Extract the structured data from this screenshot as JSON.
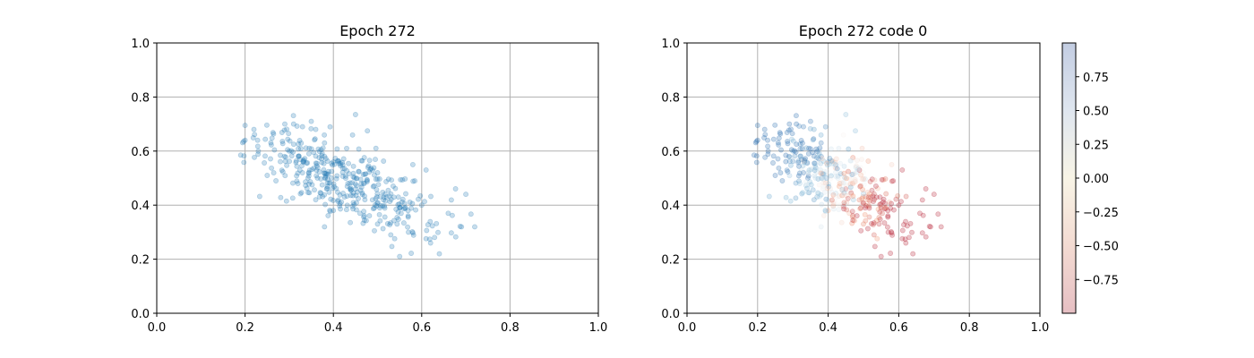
{
  "chart_data": [
    {
      "type": "scatter",
      "title": "Epoch 272",
      "xlim": [
        0.0,
        1.0
      ],
      "ylim": [
        0.0,
        1.0
      ],
      "xticks": [
        "0.0",
        "0.2",
        "0.4",
        "0.6",
        "0.8",
        "1.0"
      ],
      "yticks": [
        "0.0",
        "0.2",
        "0.4",
        "0.6",
        "0.8",
        "1.0"
      ],
      "grid": true,
      "point_color": "#1f77b4",
      "point_alpha": 0.25,
      "n_points": 420,
      "cluster": {
        "x_range": [
          0.19,
          0.72
        ],
        "y_range": [
          0.21,
          0.74
        ],
        "center": [
          0.42,
          0.48
        ],
        "trend": "negative"
      },
      "sample_points": [
        [
          0.19,
          0.585
        ],
        [
          0.2,
          0.64
        ],
        [
          0.2,
          0.695
        ],
        [
          0.22,
          0.68
        ],
        [
          0.23,
          0.6
        ],
        [
          0.25,
          0.51
        ],
        [
          0.27,
          0.49
        ],
        [
          0.29,
          0.7
        ],
        [
          0.31,
          0.7
        ],
        [
          0.33,
          0.69
        ],
        [
          0.35,
          0.71
        ],
        [
          0.36,
          0.68
        ],
        [
          0.38,
          0.63
        ],
        [
          0.4,
          0.56
        ],
        [
          0.43,
          0.61
        ],
        [
          0.45,
          0.735
        ],
        [
          0.45,
          0.46
        ],
        [
          0.47,
          0.48
        ],
        [
          0.5,
          0.52
        ],
        [
          0.52,
          0.43
        ],
        [
          0.55,
          0.39
        ],
        [
          0.57,
          0.3
        ],
        [
          0.58,
          0.55
        ],
        [
          0.6,
          0.4
        ],
        [
          0.61,
          0.53
        ],
        [
          0.62,
          0.26
        ],
        [
          0.64,
          0.22
        ],
        [
          0.66,
          0.37
        ],
        [
          0.69,
          0.32
        ],
        [
          0.7,
          0.44
        ],
        [
          0.72,
          0.32
        ],
        [
          0.4,
          0.38
        ],
        [
          0.38,
          0.32
        ],
        [
          0.36,
          0.42
        ],
        [
          0.33,
          0.52
        ],
        [
          0.46,
          0.37
        ],
        [
          0.5,
          0.33
        ],
        [
          0.55,
          0.21
        ],
        [
          0.53,
          0.29
        ],
        [
          0.3,
          0.6
        ]
      ]
    },
    {
      "type": "scatter",
      "title": "Epoch 272 code 0",
      "xlim": [
        0.0,
        1.0
      ],
      "ylim": [
        0.0,
        1.0
      ],
      "xticks": [
        "0.0",
        "0.2",
        "0.4",
        "0.6",
        "0.8",
        "1.0"
      ],
      "yticks": [
        "0.0",
        "0.2",
        "0.4",
        "0.6",
        "0.8",
        "1.0"
      ],
      "grid": true,
      "colormap": "RdBu",
      "colorbar": {
        "range": [
          -1.0,
          1.0
        ],
        "ticks": [
          "0.75",
          "0.50",
          "0.25",
          "0.00",
          "−0.25",
          "−0.50",
          "−0.75"
        ],
        "tick_values": [
          0.75,
          0.5,
          0.25,
          0.0,
          -0.25,
          -0.5,
          -0.75
        ],
        "top_color": "#c7d0e3",
        "mid_color": "#f7f3e8",
        "bottom_color": "#e9c2c6"
      },
      "point_alpha": 0.25,
      "n_points": 420,
      "color_trend": "positive (blue) at left/top, negative (red) at right/bottom"
    }
  ]
}
